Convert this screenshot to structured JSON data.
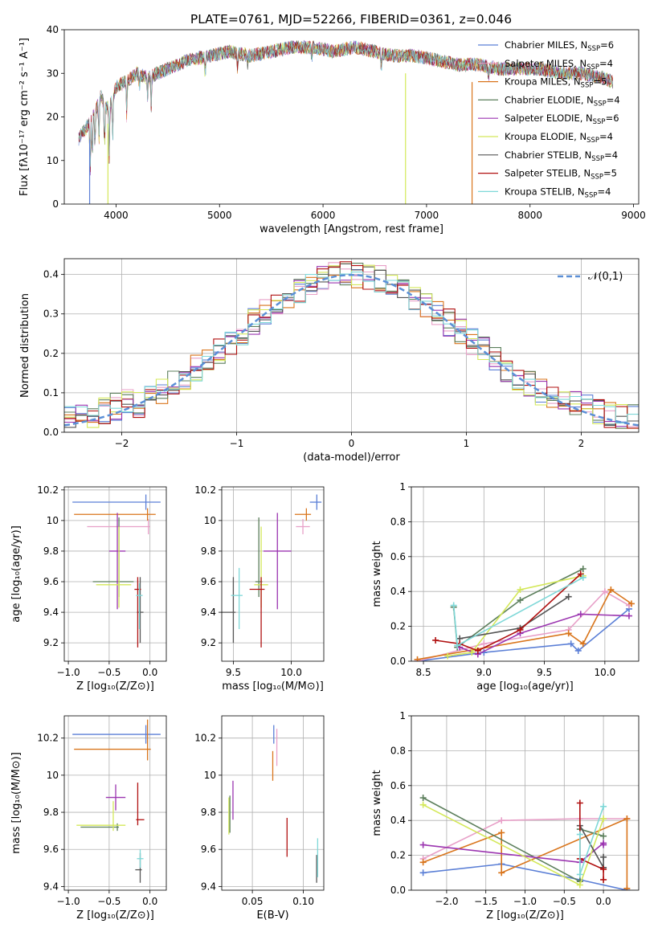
{
  "title": "PLATE=0761, MJD=52266, FIBERID=0361, z=0.046",
  "series": [
    {
      "name": "Chabrier MILES",
      "nssp": 6,
      "color": "#5b7fd6"
    },
    {
      "name": "Salpeter MILES",
      "nssp": 4,
      "color": "#e8a0c8"
    },
    {
      "name": "Kroupa MILES",
      "nssp": 5,
      "color": "#d9751c"
    },
    {
      "name": "Chabrier ELODIE",
      "nssp": 4,
      "color": "#5c7f5c"
    },
    {
      "name": "Salpeter ELODIE",
      "nssp": 6,
      "color": "#9b35b0"
    },
    {
      "name": "Kroupa ELODIE",
      "nssp": 4,
      "color": "#d4e85a"
    },
    {
      "name": "Chabrier STELIB",
      "nssp": 4,
      "color": "#555555"
    },
    {
      "name": "Salpeter STELIB",
      "nssp": 5,
      "color": "#b01010"
    },
    {
      "name": "Kroupa STELIB",
      "nssp": 4,
      "color": "#7fd8d8"
    }
  ],
  "chart_data": [
    {
      "type": "line",
      "xlabel": "wavelength [Angstrom, rest frame]",
      "ylabel": "Flux [fλ10⁻¹⁷ erg cm⁻² s⁻¹ A⁻¹]",
      "xlim": [
        3500,
        9050
      ],
      "ylim": [
        0,
        40
      ],
      "xticks": [
        4000,
        5000,
        6000,
        7000,
        8000,
        9000
      ],
      "yticks": [
        0,
        10,
        20,
        30,
        40
      ],
      "spectrum_x": [
        3640,
        3700,
        3750,
        3800,
        3850,
        3900,
        3950,
        4000,
        4100,
        4200,
        4300,
        4400,
        4500,
        4700,
        4900,
        5100,
        5300,
        5500,
        5700,
        5900,
        6100,
        6300,
        6500,
        6700,
        6900,
        7100,
        7300,
        7500,
        7700,
        7900,
        8100,
        8300,
        8500,
        8700,
        8800
      ],
      "spectrum_y": [
        15,
        17,
        19,
        21,
        25,
        22,
        23,
        27,
        28,
        30,
        29,
        30,
        31,
        33,
        34,
        35,
        34,
        35,
        36,
        36,
        35,
        36,
        35,
        34,
        34,
        33,
        32,
        32,
        31,
        31,
        31,
        30,
        30,
        29,
        28
      ]
    },
    {
      "type": "area",
      "xlabel": "(data-model)/error",
      "ylabel": "Normed distribution",
      "xlim": [
        -2.5,
        2.5
      ],
      "ylim": [
        0,
        0.44
      ],
      "xticks": [
        -2,
        -1,
        0,
        1,
        2
      ],
      "xticklabels": [
        "−2",
        "−1",
        "0",
        "1",
        "2"
      ],
      "yticks": [
        0.0,
        0.1,
        0.2,
        0.3,
        0.4
      ],
      "legend": "𝒩(0,1)",
      "reference": "gaussian"
    },
    {
      "type": "scatter",
      "xlabel": "Z [log₁₀(Z/Z⊙)]",
      "ylabel": "age  [log₁₀(age/yr)]",
      "xlim": [
        -1.05,
        0.2
      ],
      "ylim": [
        9.08,
        10.22
      ],
      "xticks": [
        -1.0,
        -0.5,
        0.0
      ],
      "xticklabels": [
        "−1.0",
        "−0.5",
        "0.0"
      ],
      "yticks": [
        9.2,
        9.4,
        9.6,
        9.8,
        10.0,
        10.2
      ],
      "points": [
        {
          "s": 0,
          "x": -0.05,
          "y": 10.12,
          "xerr": [
            0.9,
            0.18
          ],
          "yerr": [
            0.05,
            0.05
          ]
        },
        {
          "s": 1,
          "x": -0.02,
          "y": 9.96,
          "xerr": [
            0.75,
            0.02
          ],
          "yerr": [
            0.05,
            0.05
          ]
        },
        {
          "s": 2,
          "x": -0.03,
          "y": 10.04,
          "xerr": [
            0.9,
            0.1
          ],
          "yerr": [
            0.04,
            0.04
          ]
        },
        {
          "s": 3,
          "x": -0.38,
          "y": 9.6,
          "xerr": [
            0.32,
            0.18
          ],
          "yerr": [
            0.1,
            0.42
          ]
        },
        {
          "s": 4,
          "x": -0.4,
          "y": 9.8,
          "xerr": [
            0.1,
            0.1
          ],
          "yerr": [
            0.38,
            0.25
          ]
        },
        {
          "s": 5,
          "x": -0.38,
          "y": 9.58,
          "xerr": [
            0.28,
            0.15
          ],
          "yerr": [
            0.15,
            0.38
          ]
        },
        {
          "s": 6,
          "x": -0.12,
          "y": 9.4,
          "xerr": [
            0.04,
            0.04
          ],
          "yerr": [
            0.2,
            0.23
          ]
        },
        {
          "s": 7,
          "x": -0.15,
          "y": 9.55,
          "xerr": [
            0.04,
            0.04
          ],
          "yerr": [
            0.38,
            0.08
          ]
        },
        {
          "s": 8,
          "x": -0.13,
          "y": 9.51,
          "xerr": [
            0.04,
            0.04
          ],
          "yerr": [
            0.22,
            0.08
          ]
        }
      ]
    },
    {
      "type": "scatter",
      "xlabel": "mass [log₁₀(M/M⊙)]",
      "ylabel": "",
      "xlim": [
        9.4,
        10.28
      ],
      "ylim": [
        9.08,
        10.22
      ],
      "xticks": [
        9.5,
        10.0
      ],
      "xticklabels": [
        "9.5",
        "10.0"
      ],
      "yticks": [
        9.2,
        9.4,
        9.6,
        9.8,
        10.0,
        10.2
      ],
      "points": [
        {
          "s": 0,
          "x": 10.22,
          "y": 10.12,
          "xerr": [
            0.06,
            0.04
          ],
          "yerr": [
            0.05,
            0.05
          ]
        },
        {
          "s": 1,
          "x": 10.1,
          "y": 9.96,
          "xerr": [
            0.06,
            0.06
          ],
          "yerr": [
            0.05,
            0.05
          ]
        },
        {
          "s": 2,
          "x": 10.13,
          "y": 10.04,
          "xerr": [
            0.1,
            0.04
          ],
          "yerr": [
            0.04,
            0.04
          ]
        },
        {
          "s": 3,
          "x": 9.72,
          "y": 9.6,
          "xerr": [
            0.03,
            0.03
          ],
          "yerr": [
            0.1,
            0.42
          ]
        },
        {
          "s": 4,
          "x": 9.88,
          "y": 9.8,
          "xerr": [
            0.12,
            0.12
          ],
          "yerr": [
            0.38,
            0.25
          ]
        },
        {
          "s": 5,
          "x": 9.74,
          "y": 9.58,
          "xerr": [
            0.06,
            0.06
          ],
          "yerr": [
            0.15,
            0.38
          ]
        },
        {
          "s": 6,
          "x": 9.5,
          "y": 9.4,
          "xerr": [
            0.1,
            0.02
          ],
          "yerr": [
            0.2,
            0.23
          ]
        },
        {
          "s": 7,
          "x": 9.74,
          "y": 9.55,
          "xerr": [
            0.1,
            0.03
          ],
          "yerr": [
            0.38,
            0.08
          ]
        },
        {
          "s": 8,
          "x": 9.55,
          "y": 9.51,
          "xerr": [
            0.07,
            0.03
          ],
          "yerr": [
            0.22,
            0.18
          ]
        }
      ]
    },
    {
      "type": "line",
      "xlabel": "age  [log₁₀(age/yr)]",
      "ylabel": "mass weight",
      "xlim": [
        8.4,
        10.28
      ],
      "ylim": [
        0.0,
        1.0
      ],
      "xticks": [
        8.5,
        9.0,
        9.5,
        10.0
      ],
      "xticklabels": [
        "8.5",
        "9.0",
        "9.5",
        "10.0"
      ],
      "yticks": [
        0.0,
        0.2,
        0.4,
        0.6,
        0.8,
        1.0
      ],
      "lines": [
        {
          "s": 0,
          "x": [
            8.45,
            9.0,
            9.72,
            9.78,
            10.2
          ],
          "y": [
            0.0,
            0.05,
            0.1,
            0.06,
            0.3
          ]
        },
        {
          "s": 1,
          "x": [
            8.45,
            9.0,
            9.7,
            10.0,
            10.2
          ],
          "y": [
            0.0,
            0.1,
            0.18,
            0.4,
            0.32
          ]
        },
        {
          "s": 2,
          "x": [
            8.45,
            9.7,
            9.82,
            10.05,
            10.22
          ],
          "y": [
            0.01,
            0.16,
            0.1,
            0.41,
            0.33
          ]
        },
        {
          "s": 3,
          "x": [
            8.75,
            8.78,
            9.3,
            9.82
          ],
          "y": [
            0.31,
            0.08,
            0.35,
            0.53
          ]
        },
        {
          "s": 4,
          "x": [
            8.8,
            8.95,
            9.3,
            9.8,
            10.2
          ],
          "y": [
            0.08,
            0.04,
            0.16,
            0.27,
            0.26
          ]
        },
        {
          "s": 5,
          "x": [
            8.7,
            8.9,
            9.3,
            9.82
          ],
          "y": [
            0.03,
            0.05,
            0.41,
            0.49
          ]
        },
        {
          "s": 6,
          "x": [
            8.8,
            9.3,
            9.7
          ],
          "y": [
            0.13,
            0.19,
            0.37
          ]
        },
        {
          "s": 7,
          "x": [
            8.6,
            8.8,
            8.95,
            9.3,
            9.8
          ],
          "y": [
            0.12,
            0.1,
            0.06,
            0.18,
            0.5
          ]
        },
        {
          "s": 8,
          "x": [
            8.75,
            8.78,
            9.82
          ],
          "y": [
            0.32,
            0.09,
            0.48
          ]
        }
      ]
    },
    {
      "type": "scatter",
      "xlabel": "Z [log₁₀(Z/Z⊙)]",
      "ylabel": "mass [log₁₀(M/M⊙)]",
      "xlim": [
        -1.05,
        0.2
      ],
      "ylim": [
        9.38,
        10.32
      ],
      "xticks": [
        -1.0,
        -0.5,
        0.0
      ],
      "xticklabels": [
        "−1.0",
        "−0.5",
        "0.0"
      ],
      "yticks": [
        9.4,
        9.6,
        9.8,
        10.0,
        10.2
      ],
      "points": [
        {
          "s": 0,
          "x": -0.05,
          "y": 10.22,
          "xerr": [
            0.9,
            0.18
          ],
          "yerr": [
            0.05,
            0.05
          ]
        },
        {
          "s": 2,
          "x": -0.03,
          "y": 10.14,
          "xerr": [
            0.9,
            0.04
          ],
          "yerr": [
            0.06,
            0.16
          ]
        },
        {
          "s": 3,
          "x": -0.4,
          "y": 9.72,
          "xerr": [
            0.45,
            0.02
          ],
          "yerr": [
            0.02,
            0.02
          ]
        },
        {
          "s": 4,
          "x": -0.42,
          "y": 9.88,
          "xerr": [
            0.12,
            0.12
          ],
          "yerr": [
            0.07,
            0.07
          ]
        },
        {
          "s": 5,
          "x": -0.45,
          "y": 9.73,
          "xerr": [
            0.45,
            0.15
          ],
          "yerr": [
            0.03,
            0.13
          ]
        },
        {
          "s": 6,
          "x": -0.12,
          "y": 9.49,
          "xerr": [
            0.06,
            0.02
          ],
          "yerr": [
            0.07,
            0.09
          ]
        },
        {
          "s": 7,
          "x": -0.15,
          "y": 9.76,
          "xerr": [
            0.02,
            0.08
          ],
          "yerr": [
            0.03,
            0.2
          ]
        },
        {
          "s": 8,
          "x": -0.12,
          "y": 9.55,
          "xerr": [
            0.04,
            0.04
          ],
          "yerr": [
            0.05,
            0.05
          ]
        }
      ]
    },
    {
      "type": "scatter",
      "xlabel": "E(B-V)",
      "ylabel": "",
      "xlim": [
        0.02,
        0.12
      ],
      "ylim": [
        9.38,
        10.32
      ],
      "xticks": [
        0.05,
        0.1
      ],
      "xticklabels": [
        "0.05",
        "0.10"
      ],
      "yticks": [
        9.4,
        9.6,
        9.8,
        10.0,
        10.2
      ],
      "vlines": [
        {
          "s": 0,
          "x": 0.071,
          "y0": 10.17,
          "y1": 10.27
        },
        {
          "s": 1,
          "x": 0.074,
          "y0": 10.05,
          "y1": 10.25
        },
        {
          "s": 2,
          "x": 0.07,
          "y0": 9.97,
          "y1": 10.13
        },
        {
          "s": 3,
          "x": 0.028,
          "y0": 9.69,
          "y1": 9.89
        },
        {
          "s": 4,
          "x": 0.031,
          "y0": 9.76,
          "y1": 9.97
        },
        {
          "s": 5,
          "x": 0.027,
          "y0": 9.68,
          "y1": 9.88
        },
        {
          "s": 6,
          "x": 0.113,
          "y0": 9.42,
          "y1": 9.57
        },
        {
          "s": 7,
          "x": 0.084,
          "y0": 9.56,
          "y1": 9.77
        },
        {
          "s": 8,
          "x": 0.114,
          "y0": 9.45,
          "y1": 9.66
        }
      ]
    },
    {
      "type": "line",
      "xlabel": "Z [log₁₀(Z/Z⊙)]",
      "ylabel": "mass weight",
      "xlim": [
        -2.45,
        0.45
      ],
      "ylim": [
        0.0,
        1.0
      ],
      "xticks": [
        -2.0,
        -1.5,
        -1.0,
        -0.5,
        0.0
      ],
      "xticklabels": [
        "−2.0",
        "−1.5",
        "−1.0",
        "−0.5",
        "0.0"
      ],
      "yticks": [
        0.0,
        0.2,
        0.4,
        0.6,
        0.8,
        1.0
      ],
      "lines": [
        {
          "s": 0,
          "x": [
            -2.3,
            -1.3,
            -0.3,
            0.3
          ],
          "y": [
            0.1,
            0.15,
            0.06,
            0.0
          ]
        },
        {
          "s": 1,
          "x": [
            -2.3,
            -1.3,
            -0.3,
            0.3
          ],
          "y": [
            0.18,
            0.4,
            0.41,
            0.41
          ]
        },
        {
          "s": 2,
          "x": [
            -2.3,
            -1.3,
            -1.3,
            0.3,
            0.3
          ],
          "y": [
            0.16,
            0.33,
            0.1,
            0.41,
            0.01
          ]
        },
        {
          "s": 3,
          "x": [
            -2.3,
            -0.3,
            -0.3,
            0.0
          ],
          "y": [
            0.53,
            0.05,
            0.35,
            0.31
          ]
        },
        {
          "s": 4,
          "x": [
            -2.3,
            -0.3,
            0.0,
            0.0
          ],
          "y": [
            0.26,
            0.16,
            0.27,
            0.26
          ]
        },
        {
          "s": 5,
          "x": [
            -2.3,
            -0.3,
            0.0
          ],
          "y": [
            0.49,
            0.03,
            0.41
          ]
        },
        {
          "s": 6,
          "x": [
            -0.3,
            0.0,
            0.0
          ],
          "y": [
            0.37,
            0.13,
            0.19
          ]
        },
        {
          "s": 7,
          "x": [
            -0.3,
            -0.3,
            0.0,
            0.0
          ],
          "y": [
            0.5,
            0.18,
            0.12,
            0.06
          ]
        },
        {
          "s": 8,
          "x": [
            -0.3,
            -0.3,
            0.0
          ],
          "y": [
            0.32,
            0.09,
            0.48
          ]
        }
      ]
    }
  ]
}
